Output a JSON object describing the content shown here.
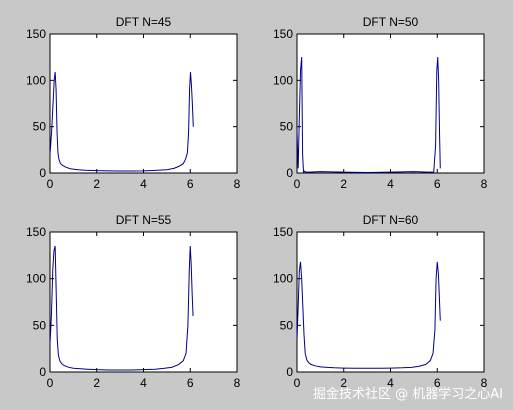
{
  "figure": {
    "background": "#c8c8c8",
    "line_color": "#00008b",
    "axes_background": "#ffffff"
  },
  "watermark": "掘金技术社区 @ 机器学习之心AI",
  "chart_data": [
    {
      "type": "line",
      "title": "DFT N=45",
      "xlabel": "",
      "ylabel": "",
      "xlim": [
        0,
        8
      ],
      "ylim": [
        0,
        150
      ],
      "xticks": [
        0,
        2,
        4,
        6,
        8
      ],
      "yticks": [
        0,
        50,
        100,
        150
      ],
      "grid": false,
      "series": [
        {
          "x": [
            0.0,
            0.07,
            0.14,
            0.18,
            0.22,
            0.26,
            0.3,
            0.34,
            0.38,
            0.45,
            0.55,
            0.7,
            0.9,
            1.2,
            1.5,
            2.0,
            2.5,
            3.0,
            3.5,
            4.0,
            4.5,
            5.0,
            5.3,
            5.5,
            5.7,
            5.8,
            5.88,
            5.93,
            5.97,
            6.01,
            6.05,
            6.09,
            6.13
          ],
          "y": [
            20,
            45,
            80,
            100,
            109,
            90,
            45,
            22,
            15,
            10,
            8,
            6,
            4.5,
            3.5,
            3,
            2.5,
            2.3,
            2.2,
            2.2,
            2.3,
            2.8,
            3.5,
            5,
            7,
            10,
            15,
            22,
            45,
            90,
            109,
            95,
            75,
            50
          ]
        }
      ]
    },
    {
      "type": "line",
      "title": "DFT N=50",
      "xlabel": "",
      "ylabel": "",
      "xlim": [
        0,
        8
      ],
      "ylim": [
        0,
        150
      ],
      "xticks": [
        0,
        2,
        4,
        6,
        8
      ],
      "yticks": [
        0,
        50,
        100,
        150
      ],
      "grid": false,
      "series": [
        {
          "x": [
            0.0,
            0.05,
            0.1,
            0.15,
            0.2,
            0.24,
            0.28,
            0.32,
            0.36,
            0.5,
            1.0,
            2.0,
            3.0,
            4.0,
            5.0,
            5.6,
            5.85,
            5.93,
            5.98,
            6.02,
            6.06,
            6.1,
            6.13
          ],
          "y": [
            45,
            5,
            60,
            110,
            125,
            20,
            0.5,
            2,
            1,
            1,
            1.5,
            1,
            0.5,
            1,
            1.5,
            1,
            1,
            30,
            110,
            125,
            100,
            40,
            5
          ]
        }
      ]
    },
    {
      "type": "line",
      "title": "DFT N=55",
      "xlabel": "",
      "ylabel": "",
      "xlim": [
        0,
        8
      ],
      "ylim": [
        0,
        150
      ],
      "xticks": [
        0,
        2,
        4,
        6,
        8
      ],
      "yticks": [
        0,
        50,
        100,
        150
      ],
      "grid": false,
      "series": [
        {
          "x": [
            0.0,
            0.06,
            0.12,
            0.17,
            0.22,
            0.27,
            0.31,
            0.36,
            0.42,
            0.5,
            0.6,
            0.8,
            1.0,
            1.3,
            1.6,
            2.0,
            2.5,
            3.0,
            3.5,
            4.0,
            4.5,
            4.9,
            5.2,
            5.5,
            5.7,
            5.82,
            5.9,
            5.96,
            6.0,
            6.04,
            6.08,
            6.12
          ],
          "y": [
            30,
            60,
            110,
            130,
            135,
            80,
            35,
            18,
            12,
            9,
            7,
            5,
            4,
            3.5,
            3,
            2.5,
            2.2,
            2.2,
            2.2,
            2.5,
            3,
            4,
            5,
            8,
            12,
            20,
            50,
            110,
            135,
            115,
            85,
            60
          ]
        }
      ]
    },
    {
      "type": "line",
      "title": "DFT N=60",
      "xlabel": "",
      "ylabel": "",
      "xlim": [
        0,
        8
      ],
      "ylim": [
        0,
        150
      ],
      "xticks": [
        0,
        2,
        4,
        6,
        8
      ],
      "yticks": [
        0,
        50,
        100,
        150
      ],
      "grid": false,
      "series": [
        {
          "x": [
            0.0,
            0.05,
            0.1,
            0.15,
            0.2,
            0.25,
            0.3,
            0.35,
            0.42,
            0.5,
            0.6,
            0.8,
            1.0,
            1.3,
            1.6,
            2.0,
            2.5,
            3.0,
            3.5,
            4.0,
            4.5,
            4.9,
            5.2,
            5.5,
            5.7,
            5.82,
            5.9,
            5.95,
            6.0,
            6.05,
            6.09,
            6.13
          ],
          "y": [
            35,
            70,
            108,
            118,
            100,
            70,
            40,
            20,
            13,
            10,
            8,
            6.5,
            5.5,
            5,
            4.5,
            4.2,
            4,
            4,
            4,
            4.2,
            4.5,
            5,
            6,
            8,
            12,
            20,
            45,
            100,
            118,
            105,
            80,
            55
          ]
        }
      ]
    }
  ]
}
